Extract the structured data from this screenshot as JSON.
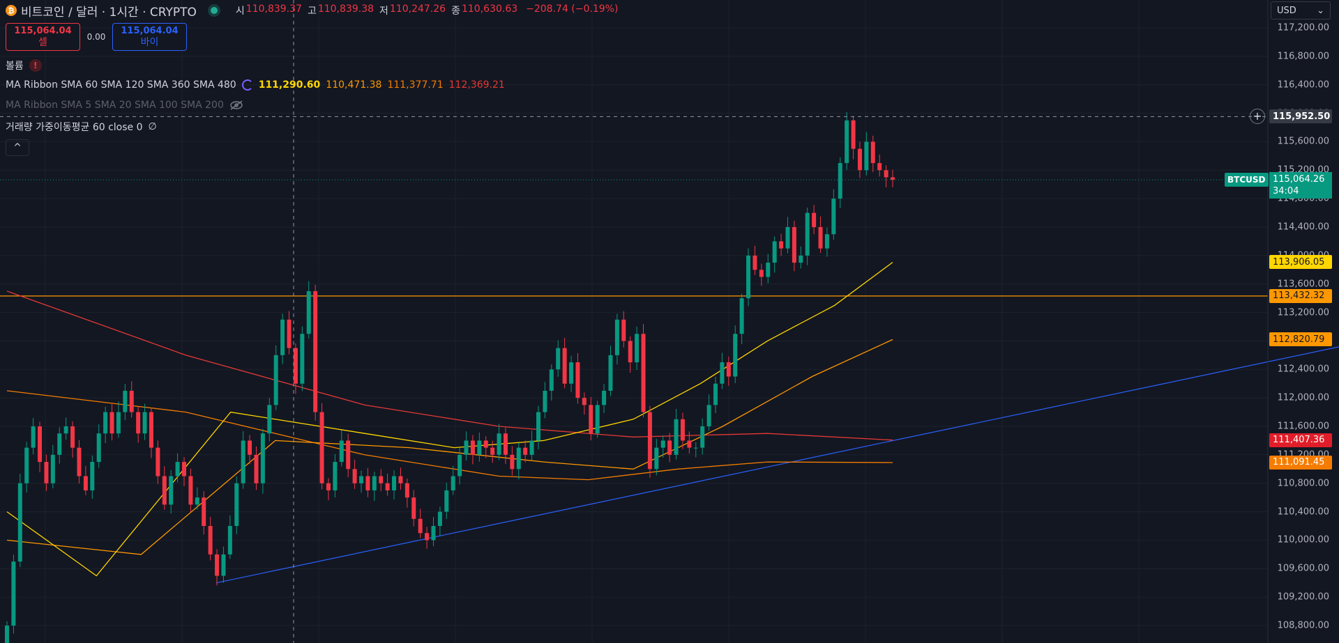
{
  "header": {
    "coin_icon": "bitcoin-icon",
    "coin_icon_glyph": "₿",
    "title": "비트코인 / 달러 · 1시간 · CRYPTO",
    "ohlc": {
      "open_label": "시",
      "open": "110,839.37",
      "high_label": "고",
      "high": "110,839.38",
      "low_label": "저",
      "low": "110,247.26",
      "close_label": "종",
      "close": "110,630.63",
      "change": "−208.74 (−0.19%)"
    }
  },
  "trade": {
    "sell_price": "115,064.04",
    "sell_label": "셀",
    "spread": "0.00",
    "buy_price": "115,064.04",
    "buy_label": "바이"
  },
  "indicators": {
    "volume_label": "볼륨",
    "ribbon1": {
      "label": "MA Ribbon SMA 60 SMA 120 SMA 360 SMA 480",
      "values": [
        "111,290.60",
        "110,471.38",
        "111,377.71",
        "112,369.21"
      ],
      "colors": [
        "#ffd600",
        "#ff9800",
        "#f57c00",
        "#e53935"
      ]
    },
    "ribbon2_label": "MA Ribbon SMA 5 SMA 20 SMA 100 SMA 200",
    "vwma_label": "거래량 가중이동평균 60 close 0",
    "vwma_value": "∅",
    "collapse_glyph": "^"
  },
  "price_axis": {
    "currency": "USD",
    "currency_arrow": "⌄",
    "ticks": [
      "117,200.00",
      "116,800.00",
      "116,400.00",
      "116,000.00",
      "115,600.00",
      "115,200.00",
      "114,800.00",
      "114,400.00",
      "114,000.00",
      "113,600.00",
      "113,200.00",
      "112,800.00",
      "112,400.00",
      "112,000.00",
      "111,600.00",
      "111,200.00",
      "110,800.00",
      "110,400.00",
      "110,000.00",
      "109,600.00",
      "109,200.00",
      "108,800.00"
    ]
  },
  "labels": {
    "crosshair_price": "115,952.50",
    "plus_glyph": "+",
    "symbol_tag": "BTCUSD",
    "current_price": "115,064.26",
    "countdown": "34:04",
    "sma60_value": "113,906.05",
    "hline_value": "113,432.32",
    "sma120_value": "112,820.79",
    "sma480_value": "111,407.36",
    "sma360_value": "111,091.45"
  },
  "colors": {
    "background": "#131722",
    "up": "#089981",
    "down": "#f23645",
    "sma60": "#ffd600",
    "sma120": "#ff9800",
    "sma360": "#f57c00",
    "sma480": "#e53935",
    "trendline": "#2962ff",
    "hline": "#ff9800"
  },
  "chart_data": {
    "type": "candlestick",
    "ylim": [
      108600,
      117400
    ],
    "x_count": 200,
    "candles_close_sequence": [
      108800,
      109700,
      110800,
      111300,
      111600,
      111100,
      110800,
      111200,
      111500,
      111600,
      111300,
      110900,
      110700,
      111100,
      111500,
      111800,
      111500,
      111800,
      112100,
      111800,
      111500,
      111800,
      111300,
      110900,
      110500,
      110900,
      111100,
      110900,
      110500,
      110600,
      110200,
      109800,
      109500,
      109800,
      110200,
      110800,
      111400,
      111200,
      110800,
      111500,
      111900,
      112600,
      113100,
      112700,
      112200,
      112900,
      113500,
      111800,
      110800,
      110700,
      111100,
      111400,
      111000,
      110800,
      110900,
      110700,
      110900,
      110800,
      110700,
      110900,
      110800,
      110600,
      110300,
      110100,
      110000,
      110200,
      110400,
      110700,
      110900,
      111200,
      111400,
      111200,
      111400,
      111300,
      111200,
      111500,
      111200,
      111000,
      111300,
      111200,
      111400,
      111800,
      112100,
      112400,
      112700,
      112200,
      112500,
      112000,
      111900,
      111500,
      111900,
      112100,
      112600,
      113100,
      112800,
      112500,
      112900,
      111800,
      111000,
      111300,
      111400,
      111200,
      111700,
      111400,
      111300,
      111300,
      111600,
      111900,
      112200,
      112500,
      112300,
      112900,
      113400,
      114000,
      113800,
      113700,
      113900,
      114200,
      114100,
      114400,
      113900,
      114000,
      114600,
      114400,
      114100,
      114300,
      114800,
      115300,
      115900,
      115500,
      115200,
      115600,
      115300,
      115200,
      115100,
      115064
    ],
    "sma60": [
      [
        0,
        110400
      ],
      [
        20,
        109500
      ],
      [
        50,
        111800
      ],
      [
        80,
        111500
      ],
      [
        100,
        111300
      ],
      [
        120,
        111400
      ],
      [
        140,
        111700
      ],
      [
        155,
        112200
      ],
      [
        170,
        112800
      ],
      [
        185,
        113300
      ],
      [
        198,
        113906
      ]
    ],
    "sma120": [
      [
        0,
        110000
      ],
      [
        30,
        109800
      ],
      [
        60,
        111400
      ],
      [
        90,
        111300
      ],
      [
        120,
        111100
      ],
      [
        140,
        111000
      ],
      [
        160,
        111600
      ],
      [
        180,
        112300
      ],
      [
        198,
        112820
      ]
    ],
    "sma360": [
      [
        0,
        112100
      ],
      [
        40,
        111800
      ],
      [
        80,
        111200
      ],
      [
        110,
        110900
      ],
      [
        130,
        110850
      ],
      [
        150,
        111000
      ],
      [
        170,
        111100
      ],
      [
        198,
        111091
      ]
    ],
    "sma480": [
      [
        0,
        113500
      ],
      [
        40,
        112600
      ],
      [
        80,
        111900
      ],
      [
        110,
        111600
      ],
      [
        140,
        111450
      ],
      [
        170,
        111500
      ],
      [
        198,
        111407
      ]
    ],
    "hline": 113432.32,
    "trendline": [
      [
        40,
        109400
      ],
      [
        260,
        112800
      ]
    ],
    "crosshair_x_index": 60,
    "crosshair_price": 115952.5,
    "current_price": 115064.26
  }
}
